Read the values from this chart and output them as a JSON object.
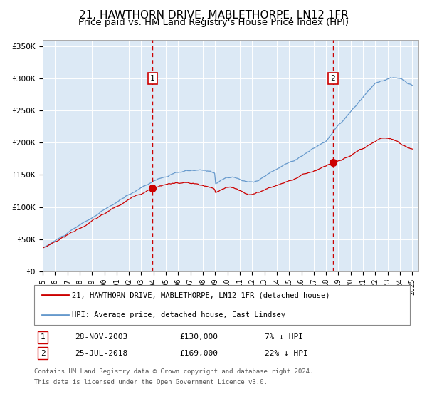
{
  "title": "21, HAWTHORN DRIVE, MABLETHORPE, LN12 1FR",
  "subtitle": "Price paid vs. HM Land Registry's House Price Index (HPI)",
  "title_fontsize": 11,
  "subtitle_fontsize": 9.5,
  "plot_bg_color": "#dce9f5",
  "ylim": [
    0,
    360000
  ],
  "yticks": [
    0,
    50000,
    100000,
    150000,
    200000,
    250000,
    300000,
    350000
  ],
  "ytick_labels": [
    "£0",
    "£50K",
    "£100K",
    "£150K",
    "£200K",
    "£250K",
    "£300K",
    "£350K"
  ],
  "purchase1_date_num": 2003.91,
  "purchase1_price": 130000,
  "purchase2_date_num": 2018.56,
  "purchase2_price": 169000,
  "vline_color": "#cc0000",
  "dot_color": "#cc0000",
  "hpi_line_color": "#6699cc",
  "price_line_color": "#cc0000",
  "legend_label_red": "21, HAWTHORN DRIVE, MABLETHORPE, LN12 1FR (detached house)",
  "legend_label_blue": "HPI: Average price, detached house, East Lindsey",
  "footer1": "Contains HM Land Registry data © Crown copyright and database right 2024.",
  "footer2": "This data is licensed under the Open Government Licence v3.0."
}
